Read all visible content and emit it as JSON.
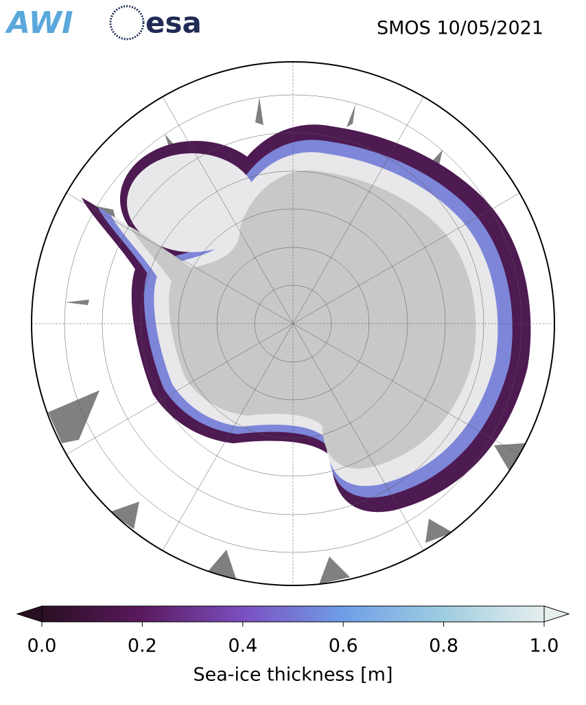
{
  "header": {
    "logos": [
      "AWI",
      "esa"
    ],
    "title": "SMOS 10/05/2021"
  },
  "colorbar": {
    "label": "Sea-ice thickness [m]",
    "lim": [
      0,
      1
    ],
    "ticks": [
      {
        "value": 0,
        "label": "0.0"
      },
      0.2,
      0.4,
      0.6,
      0.8,
      {
        "value": 1,
        "label": "1.0"
      }
    ],
    "colors": [
      "#2a0f22",
      "#5a1a5e",
      "#7b4fc0",
      "#6f9ee8",
      "#9fcde0",
      "#e6eeee"
    ]
  }
}
